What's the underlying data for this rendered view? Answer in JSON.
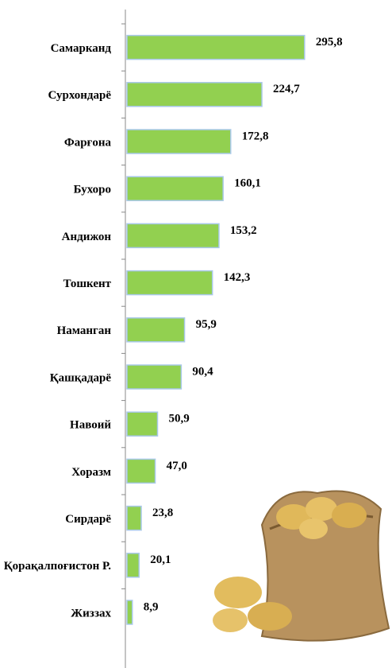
{
  "chart_data": {
    "type": "bar",
    "orientation": "horizontal",
    "categories": [
      "Самарканд",
      "Сурхондарё",
      "Фарғона",
      "Бухоро",
      "Андижон",
      "Тошкент",
      "Наманган",
      "Қашқадарё",
      "Навоий",
      "Хоразм",
      "Сирдарё",
      "Қорақалпоғистон Р.",
      "Жиззах"
    ],
    "values": [
      295.8,
      224.7,
      172.8,
      160.1,
      153.2,
      142.3,
      95.9,
      90.4,
      50.9,
      47.0,
      23.8,
      20.1,
      8.9
    ],
    "value_labels": [
      "295,8",
      "224,7",
      "172,8",
      "160,1",
      "153,2",
      "142,3",
      "95,9",
      "90,4",
      "50,9",
      "47,0",
      "23,8",
      "20,1",
      "8,9"
    ],
    "color": "#92d050",
    "xlim": [
      0,
      300
    ]
  }
}
